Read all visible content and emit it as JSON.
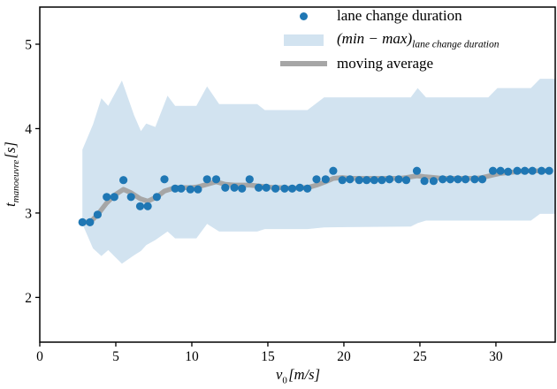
{
  "figure": {
    "background": "#ffffff",
    "spine_color": "#000000"
  },
  "chart_data": {
    "type": "scatter",
    "title": "",
    "xlabel": {
      "var": "v",
      "sub": "0",
      "unit": "[m/s]"
    },
    "ylabel": {
      "var": "t",
      "sub": "manoeuvre",
      "unit": "[s]"
    },
    "xlim": [
      0,
      33.9
    ],
    "ylim": [
      1.47,
      5.44
    ],
    "x_ticks": [
      0,
      5,
      10,
      15,
      20,
      25,
      30
    ],
    "y_ticks": [
      2,
      3,
      4,
      5
    ],
    "grid": false,
    "legend_position": "upper center-right, no frame",
    "colors": {
      "scatter": "#1f77b4",
      "band": "#d2e3f0",
      "moving_average": "#a6a6a6"
    },
    "legend": {
      "scatter_label": "lane change duration",
      "band_label_main": "(min − max)",
      "band_label_sub": "lane change duration",
      "line_label": "moving average"
    },
    "series": {
      "scatter": {
        "name": "lane change duration",
        "x": [
          2.8,
          3.3,
          3.8,
          4.4,
          4.9,
          5.5,
          6.0,
          6.6,
          7.1,
          7.7,
          8.2,
          8.9,
          9.3,
          9.9,
          10.4,
          11.0,
          11.6,
          12.2,
          12.8,
          13.3,
          13.8,
          14.4,
          14.9,
          15.5,
          16.1,
          16.6,
          17.1,
          17.6,
          18.2,
          18.8,
          19.3,
          19.9,
          20.4,
          21.0,
          21.5,
          22.0,
          22.5,
          23.0,
          23.6,
          24.1,
          24.8,
          25.3,
          25.9,
          26.5,
          27.0,
          27.5,
          28.0,
          28.6,
          29.1,
          29.8,
          30.3,
          30.8,
          31.4,
          31.9,
          32.4,
          33.0,
          33.5
        ],
        "y": [
          2.89,
          2.89,
          2.98,
          3.19,
          3.19,
          3.39,
          3.19,
          3.08,
          3.08,
          3.19,
          3.4,
          3.29,
          3.29,
          3.28,
          3.28,
          3.4,
          3.4,
          3.3,
          3.3,
          3.29,
          3.4,
          3.3,
          3.3,
          3.29,
          3.29,
          3.29,
          3.3,
          3.29,
          3.4,
          3.4,
          3.5,
          3.39,
          3.4,
          3.39,
          3.39,
          3.39,
          3.39,
          3.4,
          3.4,
          3.39,
          3.5,
          3.38,
          3.38,
          3.4,
          3.4,
          3.4,
          3.4,
          3.4,
          3.4,
          3.5,
          3.5,
          3.49,
          3.5,
          3.5,
          3.5,
          3.5,
          3.5
        ]
      },
      "moving_average": {
        "name": "moving average",
        "x": [
          2.8,
          3.3,
          3.8,
          4.4,
          4.9,
          5.5,
          6.0,
          6.6,
          7.1,
          7.7,
          8.2,
          8.9,
          9.3,
          9.9,
          10.4,
          11.0,
          11.6,
          12.2,
          12.8,
          13.3,
          13.8,
          14.4,
          14.9,
          15.5,
          16.1,
          16.6,
          17.1,
          17.6,
          18.2,
          18.8,
          19.3,
          19.9,
          20.4,
          21.0,
          21.5,
          22.0,
          22.5,
          23.0,
          23.6,
          24.1,
          24.8,
          25.3,
          25.9,
          26.5,
          27.0,
          27.5,
          28.0,
          28.6,
          29.1,
          29.8,
          30.3,
          30.8,
          31.4,
          31.9,
          32.4,
          33.0,
          33.5
        ],
        "y": [
          2.89,
          2.89,
          2.98,
          3.12,
          3.21,
          3.28,
          3.24,
          3.17,
          3.14,
          3.19,
          3.26,
          3.3,
          3.3,
          3.3,
          3.31,
          3.34,
          3.37,
          3.34,
          3.33,
          3.33,
          3.33,
          3.32,
          3.31,
          3.3,
          3.3,
          3.29,
          3.3,
          3.3,
          3.33,
          3.37,
          3.41,
          3.42,
          3.41,
          3.41,
          3.41,
          3.41,
          3.41,
          3.41,
          3.41,
          3.42,
          3.44,
          3.43,
          3.42,
          3.41,
          3.41,
          3.41,
          3.41,
          3.41,
          3.42,
          3.45,
          3.47,
          3.48,
          3.49,
          3.5,
          3.5,
          3.5,
          3.5
        ]
      },
      "band": {
        "name": "(min-max) lane change duration",
        "x": [
          2.8,
          3.5,
          4.05,
          4.5,
          5.4,
          6.2,
          6.65,
          7.0,
          7.6,
          8.4,
          8.9,
          10.3,
          11.0,
          11.8,
          14.3,
          14.8,
          17.6,
          18.7,
          24.4,
          24.85,
          25.4,
          29.5,
          30.1,
          32.3,
          32.9,
          33.9
        ],
        "max": [
          3.75,
          4.05,
          4.36,
          4.27,
          4.57,
          4.16,
          3.97,
          4.06,
          4.02,
          4.39,
          4.27,
          4.27,
          4.5,
          4.29,
          4.29,
          4.22,
          4.22,
          4.37,
          4.37,
          4.48,
          4.37,
          4.37,
          4.48,
          4.48,
          4.59,
          4.59
        ],
        "min": [
          2.87,
          2.58,
          2.49,
          2.56,
          2.4,
          2.5,
          2.55,
          2.62,
          2.68,
          2.78,
          2.7,
          2.7,
          2.87,
          2.78,
          2.78,
          2.81,
          2.81,
          2.83,
          2.84,
          2.88,
          2.91,
          2.91,
          2.91,
          2.91,
          2.99,
          2.99
        ]
      }
    }
  }
}
